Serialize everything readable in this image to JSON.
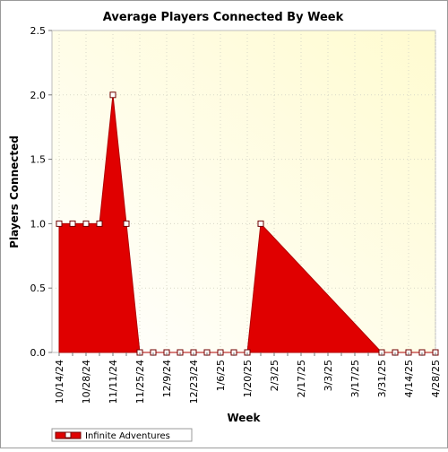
{
  "chart_data": {
    "type": "area",
    "title": "Average Players Connected By Week",
    "xlabel": "Week",
    "ylabel": "Players Connected",
    "ylim": [
      0,
      2.5
    ],
    "yticks": [
      "0.0",
      "0.5",
      "1.0",
      "1.5",
      "2.0",
      "2.5"
    ],
    "x": [
      "10/14/24",
      "10/21/24",
      "10/28/24",
      "11/4/24",
      "11/11/24",
      "11/18/24",
      "11/25/24",
      "12/2/24",
      "12/9/24",
      "12/16/24",
      "12/23/24",
      "12/30/24",
      "1/6/25",
      "1/13/25",
      "1/20/25",
      "1/27/25",
      "2/3/25",
      "2/10/25",
      "2/17/25",
      "2/24/25",
      "3/3/25",
      "3/10/25",
      "3/17/25",
      "3/24/25",
      "3/31/25",
      "4/7/25",
      "4/14/25",
      "4/21/25",
      "4/28/25"
    ],
    "xtick_labels": [
      "10/14/24",
      "10/28/24",
      "11/11/24",
      "11/25/24",
      "12/9/24",
      "12/23/24",
      "1/6/25",
      "1/20/25",
      "2/3/25",
      "2/17/25",
      "3/3/25",
      "3/17/25",
      "3/31/25",
      "4/14/25",
      "4/28/25"
    ],
    "series": [
      {
        "name": "Infinite Adventures",
        "color": "#e00000",
        "values": [
          1,
          1,
          1,
          1,
          2,
          1,
          0,
          0,
          0,
          0,
          0,
          0,
          0,
          0,
          0,
          1,
          null,
          null,
          null,
          null,
          null,
          null,
          null,
          null,
          0,
          0,
          0,
          0,
          0
        ],
        "markers": [
          true,
          true,
          true,
          true,
          true,
          true,
          true,
          true,
          true,
          true,
          true,
          true,
          true,
          true,
          true,
          true,
          false,
          false,
          false,
          false,
          false,
          false,
          false,
          false,
          true,
          true,
          true,
          true,
          true
        ]
      }
    ],
    "grid": true,
    "legend_position": "bottom-left",
    "plot_background": [
      "#ffffff",
      "#fffbd0"
    ]
  }
}
